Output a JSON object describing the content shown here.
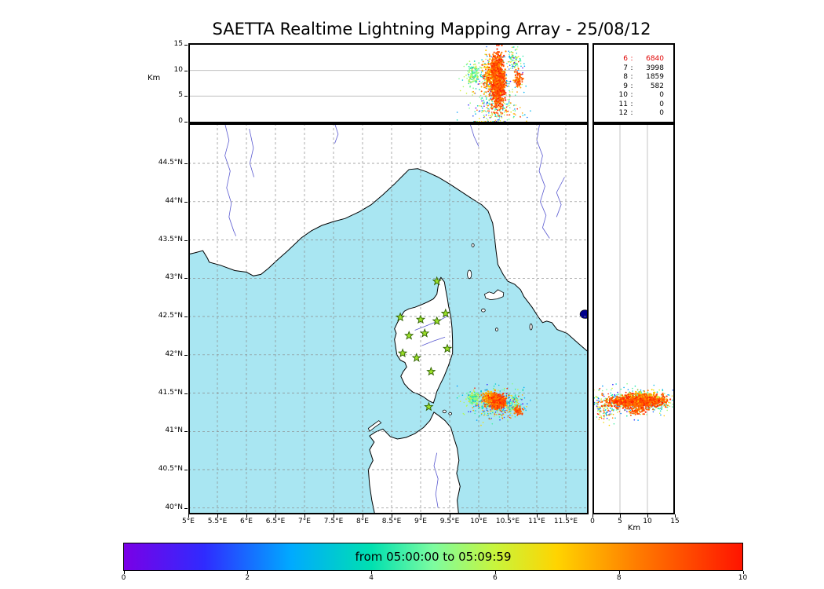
{
  "title": "SAETTA Realtime Lightning Mapping Array - 25/08/12",
  "axes": {
    "km_label_left": "Km",
    "km_label_bottom": "Km",
    "alt_ticks": [
      {
        "v": 0,
        "label": "0"
      },
      {
        "v": 5,
        "label": "5"
      },
      {
        "v": 10,
        "label": "10"
      },
      {
        "v": 15,
        "label": "15"
      }
    ],
    "lon_ticks": [
      {
        "v": 5,
        "label": "5°E"
      },
      {
        "v": 5.5,
        "label": "5.5°E"
      },
      {
        "v": 6,
        "label": "6°E"
      },
      {
        "v": 6.5,
        "label": "6.5°E"
      },
      {
        "v": 7,
        "label": "7°E"
      },
      {
        "v": 7.5,
        "label": "7.5°E"
      },
      {
        "v": 8,
        "label": "8°E"
      },
      {
        "v": 8.5,
        "label": "8.5°E"
      },
      {
        "v": 9,
        "label": "9°E"
      },
      {
        "v": 9.5,
        "label": "9.5°E"
      },
      {
        "v": 10,
        "label": "10°E"
      },
      {
        "v": 10.5,
        "label": "10.5°E"
      },
      {
        "v": 11,
        "label": "11°E"
      },
      {
        "v": 11.5,
        "label": "11.5°E"
      }
    ],
    "lat_ticks": [
      {
        "v": 44.5,
        "label": "44.5°N"
      },
      {
        "v": 44,
        "label": "44°N"
      },
      {
        "v": 43.5,
        "label": "43.5°N"
      },
      {
        "v": 43,
        "label": "43°N"
      },
      {
        "v": 42.5,
        "label": "42.5°N"
      },
      {
        "v": 42,
        "label": "42°N"
      },
      {
        "v": 41.5,
        "label": "41.5°N"
      },
      {
        "v": 41,
        "label": "41°N"
      },
      {
        "v": 40.5,
        "label": "40.5°N"
      },
      {
        "v": 40,
        "label": "40°N"
      }
    ]
  },
  "stats": {
    "separator": ":",
    "rows": [
      {
        "label": "6",
        "value": "6840",
        "highlight": true
      },
      {
        "label": "7",
        "value": "3998"
      },
      {
        "label": "8",
        "value": "1859"
      },
      {
        "label": "9",
        "value": "582"
      },
      {
        "label": "10",
        "value": "0"
      },
      {
        "label": "11",
        "value": "0"
      },
      {
        "label": "12",
        "value": "0"
      }
    ]
  },
  "colorbar": {
    "label": "from 05:00:00 to 05:09:59",
    "ticks": [
      {
        "f": 0,
        "label": "0"
      },
      {
        "f": 0.2,
        "label": "2"
      },
      {
        "f": 0.4,
        "label": "4"
      },
      {
        "f": 0.6,
        "label": "6"
      },
      {
        "f": 0.8,
        "label": "8"
      },
      {
        "f": 1,
        "label": "10"
      }
    ],
    "stops": [
      [
        0,
        "#7a00e6"
      ],
      [
        0.13,
        "#2f2bff"
      ],
      [
        0.27,
        "#00aaff"
      ],
      [
        0.4,
        "#00e0b0"
      ],
      [
        0.5,
        "#7dfca0"
      ],
      [
        0.6,
        "#c8f53c"
      ],
      [
        0.7,
        "#ffd400"
      ],
      [
        0.83,
        "#ff7c00"
      ],
      [
        1,
        "#ff1400"
      ]
    ]
  },
  "style": {
    "colors": {
      "sea": "#a9e6f2",
      "land": "#ffffff",
      "coast": "#000000",
      "river": "#5a5ad0",
      "grid": "#8a8a8a",
      "panel_grid": "#b5b5b5",
      "lake": "#00008b",
      "station_fill": "#9be02a",
      "station_edge": "#2f6000",
      "highlight": "#e00000",
      "border": "#000000"
    }
  },
  "chart_data": {
    "type": "scatter",
    "title": "SAETTA Realtime Lightning Mapping Array - 25/08/12",
    "time_window": "from 05:00:00 to 05:09:59",
    "colorbar": {
      "range": [
        0,
        10
      ],
      "label": "from 05:00:00 to 05:09:59"
    },
    "panels": [
      {
        "id": "altitude-vs-longitude",
        "x": "longitude_deg_E",
        "y": "altitude_km",
        "xlim": [
          5,
          11.89
        ],
        "ylim": [
          0,
          15
        ],
        "gridlines_km": [
          5,
          10
        ]
      },
      {
        "id": "map-plan-view",
        "x": "longitude_deg_E",
        "y": "latitude_deg_N",
        "xlim": [
          5,
          11.89
        ],
        "ylim": [
          39.91,
          45.02
        ],
        "grid_step_deg": 0.5
      },
      {
        "id": "altitude-vs-latitude",
        "x": "altitude_km",
        "y": "latitude_deg_N",
        "xlim": [
          0,
          15
        ],
        "ylim": [
          39.91,
          45.02
        ],
        "gridlines_km": [
          5,
          10
        ]
      }
    ],
    "station_count_table": [
      [
        "6",
        "6840"
      ],
      [
        "7",
        "3998"
      ],
      [
        "8",
        "1859"
      ],
      [
        "9",
        "582"
      ],
      [
        "10",
        "0"
      ],
      [
        "11",
        "0"
      ],
      [
        "12",
        "0"
      ]
    ],
    "lma_stations_lon_lat": [
      [
        9.28,
        42.96
      ],
      [
        8.65,
        42.49
      ],
      [
        9.0,
        42.46
      ],
      [
        9.28,
        42.44
      ],
      [
        9.43,
        42.54
      ],
      [
        8.8,
        42.25
      ],
      [
        9.07,
        42.28
      ],
      [
        8.69,
        42.02
      ],
      [
        9.46,
        42.08
      ],
      [
        8.93,
        41.96
      ],
      [
        9.18,
        41.78
      ],
      [
        9.14,
        41.32
      ]
    ],
    "source_clusters": [
      {
        "name": "halo",
        "n": 300,
        "lon": [
          10.25,
          0.22
        ],
        "lat": [
          41.37,
          0.09
        ],
        "alt_km": [
          6.5,
          3.2
        ],
        "t": [
          0.4,
          0.22
        ],
        "r": 0.8
      },
      {
        "name": "low-level-scatter",
        "n": 140,
        "lon": [
          10.3,
          0.22
        ],
        "lat": [
          41.33,
          0.1
        ],
        "alt_km": [
          1.8,
          1.3
        ],
        "t": [
          0.6,
          0.25
        ],
        "r": 0.8
      },
      {
        "name": "high-anvil",
        "n": 90,
        "lon": [
          10.62,
          0.07
        ],
        "lat": [
          41.36,
          0.06
        ],
        "alt_km": [
          12.0,
          1.2
        ],
        "t": [
          0.45,
          0.18
        ],
        "r": 0.8
      },
      {
        "name": "west-cell",
        "n": 130,
        "lon": [
          9.92,
          0.055
        ],
        "lat": [
          41.43,
          0.05
        ],
        "alt_km": [
          9.2,
          1.1
        ],
        "t": [
          0.5,
          0.08
        ],
        "r": 0.9
      },
      {
        "name": "core-nw",
        "n": 250,
        "lon": [
          10.2,
          0.06
        ],
        "lat": [
          41.44,
          0.04
        ],
        "alt_km": [
          9.0,
          1.8
        ],
        "t": [
          0.8,
          0.1
        ],
        "r": 1
      },
      {
        "name": "east-blob",
        "n": 80,
        "lon": [
          10.68,
          0.035
        ],
        "lat": [
          41.27,
          0.025
        ],
        "alt_km": [
          8.3,
          0.9
        ],
        "t": [
          0.88,
          0.05
        ],
        "r": 1
      },
      {
        "name": "main-core",
        "n": 800,
        "lon": [
          10.33,
          0.055
        ],
        "lat": [
          41.385,
          0.035
        ],
        "alt_km": [
          8.0,
          2.6
        ],
        "t": [
          0.9,
          0.06
        ],
        "r": 1.1
      }
    ],
    "map_features": {
      "lake_bolsena_lon_lat": [
        11.83,
        42.53
      ]
    }
  },
  "geo": {
    "mainland": [
      [
        4.93,
        43.3
      ],
      [
        5.1,
        43.33
      ],
      [
        5.25,
        43.36
      ],
      [
        5.33,
        43.26
      ],
      [
        5.36,
        43.21
      ],
      [
        5.55,
        43.17
      ],
      [
        5.8,
        43.1
      ],
      [
        6.0,
        43.08
      ],
      [
        6.12,
        43.03
      ],
      [
        6.25,
        43.05
      ],
      [
        6.38,
        43.13
      ],
      [
        6.55,
        43.25
      ],
      [
        6.7,
        43.35
      ],
      [
        6.95,
        43.53
      ],
      [
        7.12,
        43.62
      ],
      [
        7.3,
        43.69
      ],
      [
        7.5,
        43.74
      ],
      [
        7.7,
        43.78
      ],
      [
        7.95,
        43.87
      ],
      [
        8.15,
        43.96
      ],
      [
        8.35,
        44.09
      ],
      [
        8.55,
        44.23
      ],
      [
        8.68,
        44.33
      ],
      [
        8.8,
        44.42
      ],
      [
        8.95,
        44.43
      ],
      [
        9.1,
        44.39
      ],
      [
        9.3,
        44.32
      ],
      [
        9.5,
        44.23
      ],
      [
        9.7,
        44.13
      ],
      [
        9.9,
        44.03
      ],
      [
        10.05,
        43.96
      ],
      [
        10.16,
        43.88
      ],
      [
        10.24,
        43.72
      ],
      [
        10.27,
        43.55
      ],
      [
        10.3,
        43.35
      ],
      [
        10.33,
        43.18
      ],
      [
        10.42,
        43.05
      ],
      [
        10.5,
        42.96
      ],
      [
        10.62,
        42.92
      ],
      [
        10.72,
        42.85
      ],
      [
        10.78,
        42.76
      ],
      [
        10.92,
        42.62
      ],
      [
        11.02,
        42.5
      ],
      [
        11.1,
        42.42
      ],
      [
        11.17,
        42.44
      ],
      [
        11.26,
        42.42
      ],
      [
        11.35,
        42.33
      ],
      [
        11.52,
        42.28
      ],
      [
        11.7,
        42.16
      ],
      [
        11.85,
        42.06
      ],
      [
        11.95,
        42.0
      ],
      [
        11.95,
        45.1
      ],
      [
        4.93,
        45.1
      ]
    ],
    "corsica": [
      [
        9.35,
        43.01
      ],
      [
        9.41,
        42.95
      ],
      [
        9.43,
        42.86
      ],
      [
        9.46,
        42.74
      ],
      [
        9.48,
        42.64
      ],
      [
        9.52,
        42.5
      ],
      [
        9.54,
        42.35
      ],
      [
        9.55,
        42.18
      ],
      [
        9.55,
        42.02
      ],
      [
        9.48,
        41.86
      ],
      [
        9.4,
        41.71
      ],
      [
        9.34,
        41.62
      ],
      [
        9.28,
        41.52
      ],
      [
        9.25,
        41.44
      ],
      [
        9.22,
        41.37
      ],
      [
        9.14,
        41.4
      ],
      [
        9.05,
        41.45
      ],
      [
        8.95,
        41.49
      ],
      [
        8.87,
        41.51
      ],
      [
        8.79,
        41.56
      ],
      [
        8.72,
        41.62
      ],
      [
        8.66,
        41.72
      ],
      [
        8.7,
        41.78
      ],
      [
        8.76,
        41.84
      ],
      [
        8.73,
        41.9
      ],
      [
        8.65,
        41.93
      ],
      [
        8.59,
        42.0
      ],
      [
        8.57,
        42.1
      ],
      [
        8.55,
        42.2
      ],
      [
        8.58,
        42.28
      ],
      [
        8.55,
        42.34
      ],
      [
        8.6,
        42.42
      ],
      [
        8.66,
        42.5
      ],
      [
        8.72,
        42.57
      ],
      [
        8.8,
        42.6
      ],
      [
        8.9,
        42.62
      ],
      [
        9.0,
        42.65
      ],
      [
        9.12,
        42.69
      ],
      [
        9.22,
        42.73
      ],
      [
        9.28,
        42.79
      ],
      [
        9.3,
        42.89
      ],
      [
        9.32,
        42.97
      ]
    ],
    "sardinia": [
      [
        8.22,
        39.88
      ],
      [
        8.16,
        40.1
      ],
      [
        8.12,
        40.3
      ],
      [
        8.1,
        40.5
      ],
      [
        8.18,
        40.62
      ],
      [
        8.12,
        40.76
      ],
      [
        8.2,
        40.86
      ],
      [
        8.12,
        40.94
      ],
      [
        8.22,
        40.99
      ],
      [
        8.35,
        41.03
      ],
      [
        8.48,
        40.93
      ],
      [
        8.6,
        40.9
      ],
      [
        8.75,
        40.92
      ],
      [
        8.9,
        40.97
      ],
      [
        9.05,
        41.05
      ],
      [
        9.16,
        41.14
      ],
      [
        9.23,
        41.25
      ],
      [
        9.32,
        41.2
      ],
      [
        9.42,
        41.14
      ],
      [
        9.52,
        41.05
      ],
      [
        9.57,
        40.92
      ],
      [
        9.63,
        40.78
      ],
      [
        9.66,
        40.62
      ],
      [
        9.62,
        40.45
      ],
      [
        9.68,
        40.28
      ],
      [
        9.63,
        40.1
      ],
      [
        9.66,
        39.88
      ]
    ],
    "island_polys": [
      [
        [
          10.1,
          42.79
        ],
        [
          10.18,
          42.82
        ],
        [
          10.26,
          42.8
        ],
        [
          10.33,
          42.85
        ],
        [
          10.43,
          42.81
        ],
        [
          10.42,
          42.76
        ],
        [
          10.32,
          42.73
        ],
        [
          10.2,
          42.72
        ],
        [
          10.12,
          42.74
        ]
      ],
      [
        [
          8.12,
          41.0
        ],
        [
          8.22,
          41.06
        ],
        [
          8.32,
          41.11
        ],
        [
          8.28,
          41.14
        ],
        [
          8.17,
          41.08
        ],
        [
          8.1,
          41.04
        ]
      ]
    ],
    "island_ellipses": [
      [
        9.84,
        43.05,
        0.035,
        0.055
      ],
      [
        9.9,
        43.43,
        0.022,
        0.022
      ],
      [
        10.08,
        42.58,
        0.032,
        0.02
      ],
      [
        10.31,
        42.33,
        0.02,
        0.02
      ],
      [
        10.9,
        42.365,
        0.022,
        0.04
      ],
      [
        9.41,
        41.26,
        0.03,
        0.018
      ],
      [
        9.51,
        41.23,
        0.025,
        0.015
      ]
    ],
    "rivers": [
      [
        [
          5.62,
          45.05
        ],
        [
          5.7,
          44.8
        ],
        [
          5.63,
          44.6
        ],
        [
          5.72,
          44.4
        ],
        [
          5.66,
          44.18
        ],
        [
          5.74,
          43.98
        ],
        [
          5.7,
          43.8
        ],
        [
          5.78,
          43.62
        ],
        [
          5.82,
          43.55
        ]
      ],
      [
        [
          6.05,
          44.95
        ],
        [
          6.12,
          44.7
        ],
        [
          6.06,
          44.5
        ],
        [
          6.13,
          44.32
        ]
      ],
      [
        [
          7.52,
          45.02
        ],
        [
          7.58,
          44.88
        ],
        [
          7.52,
          44.76
        ]
      ],
      [
        [
          9.85,
          45.02
        ],
        [
          9.92,
          44.85
        ],
        [
          10.0,
          44.72
        ]
      ],
      [
        [
          11.05,
          45.02
        ],
        [
          11.0,
          44.8
        ],
        [
          11.1,
          44.6
        ],
        [
          11.04,
          44.4
        ],
        [
          11.14,
          44.2
        ],
        [
          11.06,
          44.0
        ],
        [
          11.16,
          43.82
        ],
        [
          11.1,
          43.66
        ],
        [
          11.22,
          43.52
        ]
      ],
      [
        [
          11.48,
          44.32
        ],
        [
          11.34,
          44.12
        ],
        [
          11.42,
          43.96
        ],
        [
          11.34,
          43.8
        ]
      ],
      [
        [
          9.28,
          40.72
        ],
        [
          9.23,
          40.55
        ],
        [
          9.3,
          40.38
        ],
        [
          9.26,
          40.18
        ],
        [
          9.3,
          40.0
        ]
      ],
      [
        [
          8.9,
          42.32
        ],
        [
          9.1,
          42.38
        ],
        [
          9.3,
          42.44
        ],
        [
          9.45,
          42.5
        ]
      ],
      [
        [
          9.02,
          42.12
        ],
        [
          9.22,
          42.18
        ],
        [
          9.42,
          42.23
        ]
      ]
    ],
    "lake": [
      11.83,
      42.53,
      0.085,
      0.055
    ]
  }
}
